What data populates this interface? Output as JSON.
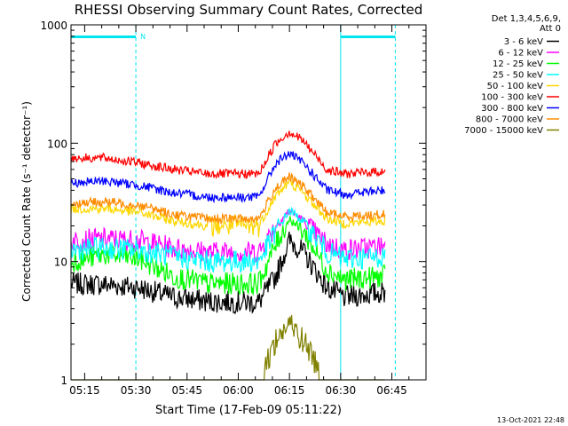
{
  "chart_data": {
    "type": "line",
    "title": "RHESSI Observing Summary Count Rates, Corrected",
    "xlabel": "Start Time (17-Feb-09 05:11:22)",
    "ylabel": "Corrected Count Rate (s⁻¹ detector⁻¹)",
    "y_scale": "log",
    "ylim": [
      1,
      1000
    ],
    "x_range_minutes": [
      "05:11",
      "06:55"
    ],
    "x_ticks": [
      "05:15",
      "05:30",
      "05:45",
      "06:00",
      "06:15",
      "06:30",
      "06:45"
    ],
    "y_ticks": [
      "1",
      "10",
      "100",
      "1000"
    ],
    "grid": false,
    "legend_header": [
      "Det 1,3,4,5,6,9,",
      "Att 0"
    ],
    "legend_position": "right",
    "footer_timestamp": "13-Oct-2021 22:48",
    "night_marker_label": "N",
    "attenuator_intervals": [
      [
        "05:11",
        "05:30"
      ],
      [
        "06:30",
        "06:46"
      ]
    ],
    "series": [
      {
        "name": "3 - 6 keV",
        "color": "#000000",
        "minutes": [
          0,
          10,
          20,
          30,
          40,
          55,
          60,
          64,
          68,
          75,
          80,
          92
        ],
        "values": [
          6.5,
          6.4,
          6.0,
          5.0,
          4.6,
          4.5,
          7.5,
          15.0,
          12.0,
          6.0,
          5.0,
          5.5
        ]
      },
      {
        "name": "6 - 12 keV",
        "color": "#ff00ff",
        "minutes": [
          0,
          10,
          20,
          30,
          40,
          55,
          60,
          64,
          68,
          75,
          80,
          92
        ],
        "values": [
          15,
          15.5,
          15,
          13,
          12,
          12,
          20,
          27,
          22,
          14,
          12.5,
          13.5
        ]
      },
      {
        "name": "12 - 25 keV",
        "color": "#00ff00",
        "minutes": [
          0,
          10,
          20,
          30,
          40,
          55,
          60,
          64,
          68,
          75,
          80,
          92
        ],
        "values": [
          10,
          11.5,
          10.5,
          7.5,
          6.5,
          6.5,
          14,
          23,
          18,
          8.5,
          7.0,
          7.5
        ]
      },
      {
        "name": "25 - 50 keV",
        "color": "#00ffff",
        "minutes": [
          0,
          10,
          20,
          30,
          40,
          55,
          60,
          64,
          68,
          75,
          80,
          92
        ],
        "values": [
          12.5,
          13,
          12.5,
          11,
          10,
          10,
          18,
          27,
          22,
          12,
          10.5,
          11
        ]
      },
      {
        "name": "50 - 100 keV",
        "color": "#ffd700",
        "minutes": [
          0,
          10,
          20,
          30,
          40,
          55,
          60,
          64,
          68,
          75,
          80,
          92
        ],
        "values": [
          28,
          28,
          26,
          22,
          20,
          20,
          36,
          47,
          38,
          23,
          21,
          22
        ]
      },
      {
        "name": "100 - 300 keV",
        "color": "#ff0000",
        "minutes": [
          0,
          10,
          20,
          30,
          40,
          55,
          60,
          64,
          68,
          75,
          80,
          92
        ],
        "values": [
          75,
          75,
          68,
          60,
          55,
          55,
          100,
          125,
          105,
          60,
          55,
          58
        ]
      },
      {
        "name": "300 - 800 keV",
        "color": "#0000ff",
        "minutes": [
          0,
          10,
          20,
          30,
          40,
          55,
          60,
          64,
          68,
          75,
          80,
          92
        ],
        "values": [
          46,
          48,
          44,
          38,
          35,
          35,
          68,
          82,
          68,
          40,
          37,
          40
        ]
      },
      {
        "name": "800 - 7000 keV",
        "color": "#ff8c00",
        "minutes": [
          0,
          10,
          20,
          30,
          40,
          55,
          60,
          64,
          68,
          75,
          80,
          92
        ],
        "values": [
          31,
          32,
          30,
          25,
          23,
          23,
          42,
          52,
          43,
          26,
          24,
          25
        ]
      },
      {
        "name": "7000 - 15000 keV",
        "color": "#808000",
        "minutes": [
          0,
          10,
          20,
          30,
          40,
          55,
          60,
          64,
          68,
          75,
          80,
          92
        ],
        "values": [
          1,
          1,
          1,
          1,
          1,
          1,
          2.2,
          3.0,
          2.2,
          1,
          1,
          1
        ]
      }
    ]
  }
}
